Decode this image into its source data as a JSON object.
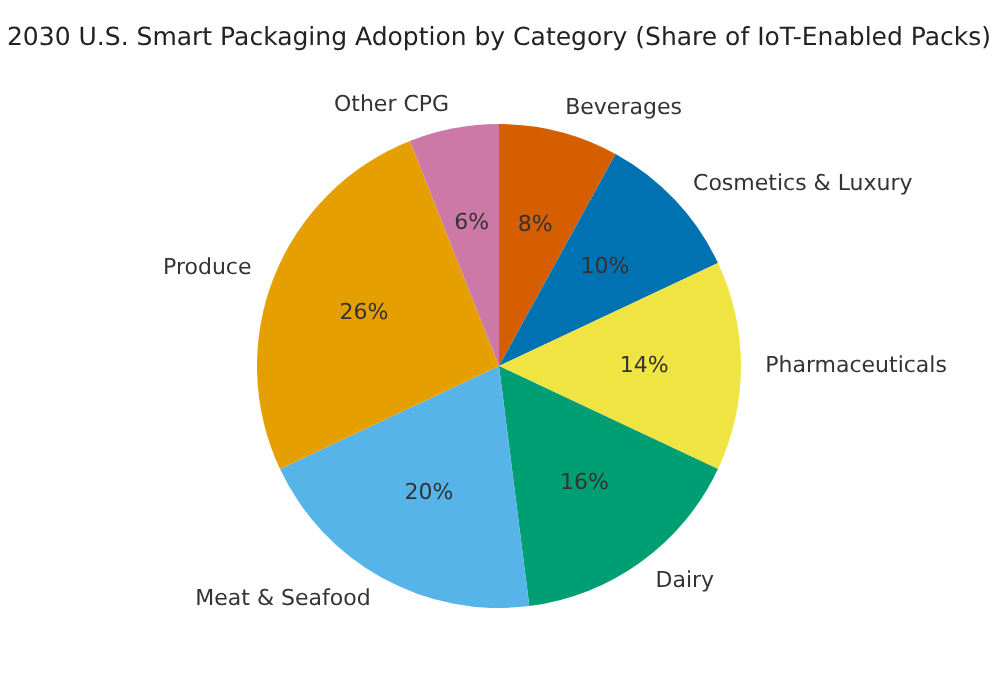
{
  "chart_data": {
    "type": "pie",
    "title": "2030 U.S. Smart Packaging Adoption by Category (Share of IoT-Enabled Packs)",
    "categories": [
      "Beverages",
      "Cosmetics & Luxury",
      "Pharmaceuticals",
      "Dairy",
      "Meat & Seafood",
      "Produce",
      "Other CPG"
    ],
    "values": [
      8,
      10,
      14,
      16,
      20,
      26,
      6
    ],
    "colors": [
      "#d55e00",
      "#0072b2",
      "#f0e442",
      "#009e73",
      "#56b4e9",
      "#e69f00",
      "#cc79a7"
    ],
    "value_labels": [
      "8%",
      "10%",
      "14%",
      "16%",
      "20%",
      "26%",
      "6%"
    ],
    "legend": false
  }
}
